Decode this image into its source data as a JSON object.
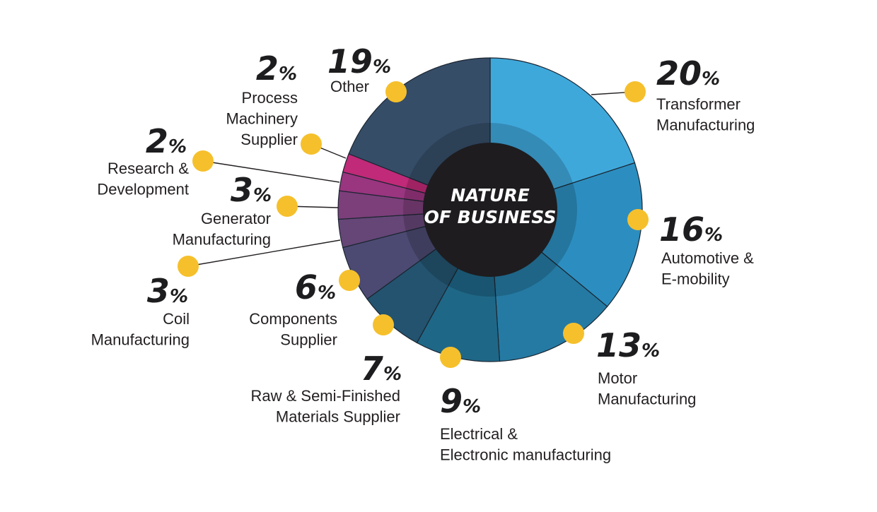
{
  "chart_data": {
    "type": "pie",
    "title": "NATURE OF BUSINESS",
    "title_lines": [
      "NATURE",
      "OF BUSINESS"
    ],
    "slices": [
      {
        "label": "Transformer Manufacturing",
        "label_lines": [
          "Transformer",
          "Manufacturing"
        ],
        "value": 20,
        "value_text": "20",
        "color": "#3fa8db"
      },
      {
        "label": "Automotive & E-mobility",
        "label_lines": [
          "Automotive &",
          "E-mobility"
        ],
        "value": 16,
        "value_text": "16",
        "color": "#2c8ec0"
      },
      {
        "label": "Motor Manufacturing",
        "label_lines": [
          "Motor",
          "Manufacturing"
        ],
        "value": 13,
        "value_text": "13",
        "color": "#257aa3"
      },
      {
        "label": "Electrical & Electronic manufacturing",
        "label_lines": [
          "Electrical &",
          "Electronic manufacturing"
        ],
        "value": 9,
        "value_text": "9",
        "color": "#1f6787"
      },
      {
        "label": "Raw & Semi-Finished Materials Supplier",
        "label_lines": [
          "Raw & Semi-Finished",
          "Materials Supplier"
        ],
        "value": 7,
        "value_text": "7",
        "color": "#23536f"
      },
      {
        "label": "Components Supplier",
        "label_lines": [
          "Components",
          "Supplier"
        ],
        "value": 6,
        "value_text": "6",
        "color": "#4c4a72"
      },
      {
        "label": "Coil Manufacturing",
        "label_lines": [
          "Coil",
          "Manufacturing"
        ],
        "value": 3,
        "value_text": "3",
        "color": "#654677"
      },
      {
        "label": "Generator Manufacturing",
        "label_lines": [
          "Generator",
          "Manufacturing"
        ],
        "value": 3,
        "value_text": "3",
        "color": "#7c3f7a"
      },
      {
        "label": "Research & Development",
        "label_lines": [
          "Research &",
          "Development"
        ],
        "value": 2,
        "value_text": "2",
        "color": "#9a3580"
      },
      {
        "label": "Process Machinery Supplier",
        "label_lines": [
          "Process",
          "Machinery",
          "Supplier"
        ],
        "value": 2,
        "value_text": "2",
        "color": "#c02a78"
      },
      {
        "label": "Other",
        "label_lines": [
          "Other"
        ],
        "value": 19,
        "value_text": "19",
        "color": "#364d68"
      }
    ],
    "percent_sign": "%",
    "colors": {
      "marker": "#f6c02c",
      "center": "#1e1c1f",
      "connector": "#231f20",
      "separator": "#1b2530"
    }
  }
}
